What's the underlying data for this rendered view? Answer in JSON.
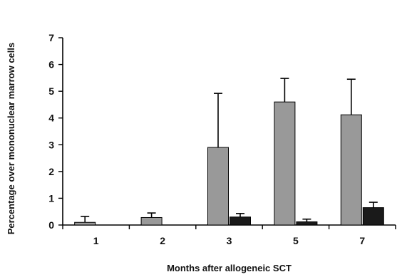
{
  "chart_data": {
    "type": "bar",
    "xlabel": "Months after allogeneic SCT",
    "ylabel": "Percentage over mononuclear marrow cells",
    "ylim": [
      0,
      7
    ],
    "yticks": [
      "0",
      "1",
      "2",
      "3",
      "4",
      "5",
      "6",
      "7"
    ],
    "categories": [
      "1",
      "2",
      "3",
      "5",
      "7"
    ],
    "grid": false,
    "legend": "none",
    "series": [
      {
        "color": "#999999",
        "values": [
          0.1,
          0.28,
          2.9,
          4.6,
          4.12
        ],
        "error_plus": [
          0.22,
          0.17,
          2.02,
          0.88,
          1.33
        ]
      },
      {
        "color": "#1a1a1a",
        "values": [
          0,
          0,
          0.3,
          0.12,
          0.65
        ],
        "error_plus": [
          0,
          0,
          0.13,
          0.1,
          0.2
        ]
      }
    ]
  }
}
